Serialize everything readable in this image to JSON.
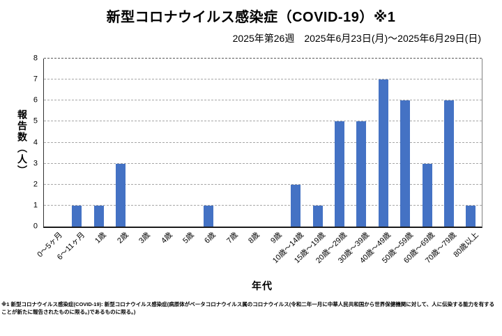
{
  "page": {
    "title": "新型コロナウイルス感染症（COVID-19）※1",
    "subtitle": "2025年第26週　2025年6月23日(月)～2025年6月29日(日)",
    "footnote": "※1 新型コロナウイルス感染症(COVID-19): 新型コロナウイルス感染症(病原体がベータコロナウイルス属のコロナウイルス(令和二年一月に中華人民共和国から世界保健機関に対して、人に伝染する能力を有することが新たに報告されたものに限る。)であるものに限る。)"
  },
  "chart_data": {
    "type": "bar",
    "title": "新型コロナウイルス感染症（COVID-19）※1",
    "categories": [
      "0～5ヶ月",
      "6～11ヶ月",
      "1歳",
      "2歳",
      "3歳",
      "4歳",
      "5歳",
      "6歳",
      "7歳",
      "8歳",
      "9歳",
      "10歳～14歳",
      "15歳～19歳",
      "20歳～29歳",
      "30歳～39歳",
      "40歳～49歳",
      "50歳～59歳",
      "60歳～69歳",
      "70歳～79歳",
      "80歳以上"
    ],
    "values": [
      0,
      1,
      1,
      3,
      0,
      0,
      0,
      1,
      0,
      0,
      0,
      2,
      1,
      5,
      5,
      7,
      6,
      3,
      6,
      1
    ],
    "xlabel": "年代",
    "ylabel": "報告数（人）",
    "ylim": [
      0,
      8
    ],
    "ytick_step": 1,
    "grid": "horizontal-dashed",
    "legend": "none",
    "bar_color": "#4472C4"
  },
  "colors": {
    "bar": "#4472C4",
    "gridline": "#A6A6A6",
    "axis": "#1A1A1A",
    "plot_border_right": "#808080",
    "text": "#000000"
  }
}
